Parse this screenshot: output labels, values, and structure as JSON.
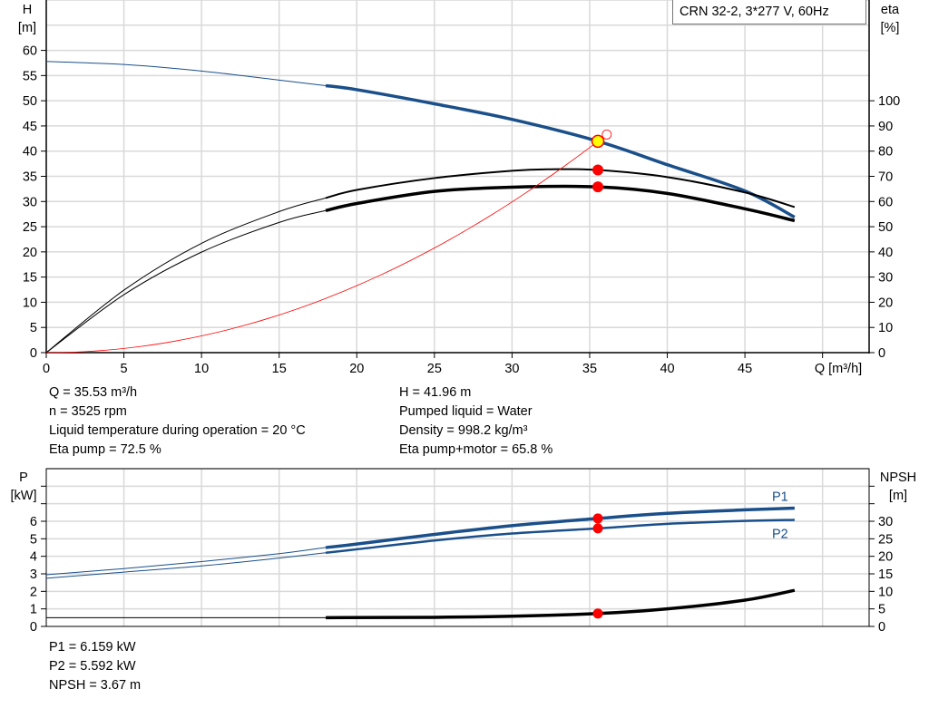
{
  "legend_title": "CRN 32-2, 3*277 V, 60Hz",
  "info_left": [
    "Q = 35.53 m³/h",
    "n = 3525 rpm",
    "Liquid temperature during operation = 20 °C",
    "Eta pump = 72.5 %"
  ],
  "info_right": [
    "H = 41.96 m",
    "Pumped liquid = Water",
    "Density = 998.2 kg/m³",
    "Eta pump+motor = 65.8 %"
  ],
  "info_bottom": [
    "P1 = 6.159 kW",
    "P2 = 5.592 kW",
    "NPSH = 3.67 m"
  ],
  "colors": {
    "head": "#1a4f8a",
    "power": "#1a4f8a",
    "eta": "#000000",
    "npsh": "#000000",
    "system": "#ff0000",
    "duty_point": "#ff0000",
    "duty_fill": "#ffff00",
    "grid": "#d9d9d9"
  },
  "chart_data": [
    {
      "type": "line",
      "xlabel": "Q [m³/h]",
      "ylabel": "H\n[m]",
      "ylabel_right": "eta\n[%]",
      "xlim": [
        0,
        53
      ],
      "ylim": [
        0,
        70
      ],
      "ylim_right": [
        0,
        140
      ],
      "x_ticks": [
        "0",
        "5",
        "10",
        "15",
        "20",
        "25",
        "30",
        "35",
        "40",
        "45"
      ],
      "y_ticks": [
        "0",
        "5",
        "10",
        "15",
        "20",
        "25",
        "30",
        "35",
        "40",
        "45",
        "50",
        "55",
        "60"
      ],
      "y_ticks_right": [
        "0",
        "10",
        "20",
        "30",
        "40",
        "50",
        "60",
        "70",
        "80",
        "90",
        "100"
      ],
      "grid": true,
      "operating_range_start": 18,
      "series": [
        {
          "key": "head",
          "axis": "left",
          "points": [
            [
              0,
              57.8
            ],
            [
              5,
              57.2
            ],
            [
              10,
              55.9
            ],
            [
              15,
              54.1
            ],
            [
              18,
              53
            ],
            [
              20,
              52.2
            ],
            [
              25,
              49.4
            ],
            [
              30,
              46.3
            ],
            [
              35.53,
              41.96
            ],
            [
              40,
              37.3
            ],
            [
              45,
              32.1
            ],
            [
              48.2,
              26.9
            ]
          ]
        },
        {
          "key": "eta_pump",
          "axis": "right",
          "points": [
            [
              0,
              0
            ],
            [
              5,
              24.8
            ],
            [
              10,
              43.4
            ],
            [
              15,
              56
            ],
            [
              18,
              61.4
            ],
            [
              20,
              64.6
            ],
            [
              25,
              69.3
            ],
            [
              30,
              72.2
            ],
            [
              32.5,
              72.8
            ],
            [
              35.53,
              72.5
            ],
            [
              40,
              69.7
            ],
            [
              45,
              63.6
            ],
            [
              48.2,
              57.8
            ]
          ]
        },
        {
          "key": "eta_pump_motor",
          "axis": "right",
          "points": [
            [
              0,
              0
            ],
            [
              5,
              23
            ],
            [
              10,
              39.9
            ],
            [
              15,
              51.7
            ],
            [
              18,
              56.4
            ],
            [
              20,
              59.2
            ],
            [
              25,
              64
            ],
            [
              30,
              65.7
            ],
            [
              35.53,
              65.8
            ],
            [
              40,
              63.2
            ],
            [
              45,
              57.1
            ],
            [
              48.2,
              52.4
            ]
          ]
        },
        {
          "key": "system",
          "axis": "left",
          "coef": 0.03324,
          "q_max": 35.53
        }
      ],
      "duty_point": {
        "Q": 35.53,
        "H": 41.96,
        "eta_pump": 72.5,
        "eta_pump_motor": 65.8
      },
      "system_end_marker": {
        "Q": 36.1,
        "H": 43.3
      }
    },
    {
      "type": "line",
      "ylabel": "P\n[kW]",
      "ylabel_right": "NPSH\n[m]",
      "xlim": [
        0,
        53
      ],
      "ylim": [
        0,
        9
      ],
      "ylim_right": [
        0,
        45
      ],
      "y_ticks": [
        "0",
        "1",
        "2",
        "3",
        "4",
        "5",
        "6"
      ],
      "y_ticks_right": [
        "0",
        "5",
        "10",
        "15",
        "20",
        "25",
        "30"
      ],
      "grid": true,
      "series": [
        {
          "name": "P1",
          "axis": "left",
          "points": [
            [
              0,
              2.95
            ],
            [
              5,
              3.3
            ],
            [
              10,
              3.7
            ],
            [
              15,
              4.15
            ],
            [
              18,
              4.5
            ],
            [
              20,
              4.7
            ],
            [
              25,
              5.25
            ],
            [
              30,
              5.75
            ],
            [
              35.53,
              6.159
            ],
            [
              40,
              6.45
            ],
            [
              45,
              6.65
            ],
            [
              48.2,
              6.75
            ]
          ]
        },
        {
          "name": "P2",
          "axis": "left",
          "points": [
            [
              0,
              2.75
            ],
            [
              5,
              3.1
            ],
            [
              10,
              3.45
            ],
            [
              15,
              3.9
            ],
            [
              18,
              4.2
            ],
            [
              20,
              4.4
            ],
            [
              25,
              4.9
            ],
            [
              30,
              5.3
            ],
            [
              35.53,
              5.592
            ],
            [
              40,
              5.85
            ],
            [
              45,
              6.02
            ],
            [
              48.2,
              6.08
            ]
          ]
        },
        {
          "key": "npsh",
          "axis": "right",
          "points": [
            [
              0,
              2.5
            ],
            [
              18,
              2.5
            ],
            [
              25,
              2.6
            ],
            [
              30,
              2.9
            ],
            [
              35.53,
              3.67
            ],
            [
              40,
              5
            ],
            [
              45,
              7.5
            ],
            [
              48.2,
              10.3
            ]
          ]
        }
      ],
      "duty_point": {
        "Q": 35.53,
        "P1": 6.159,
        "P2": 5.592,
        "NPSH": 3.67
      }
    }
  ]
}
